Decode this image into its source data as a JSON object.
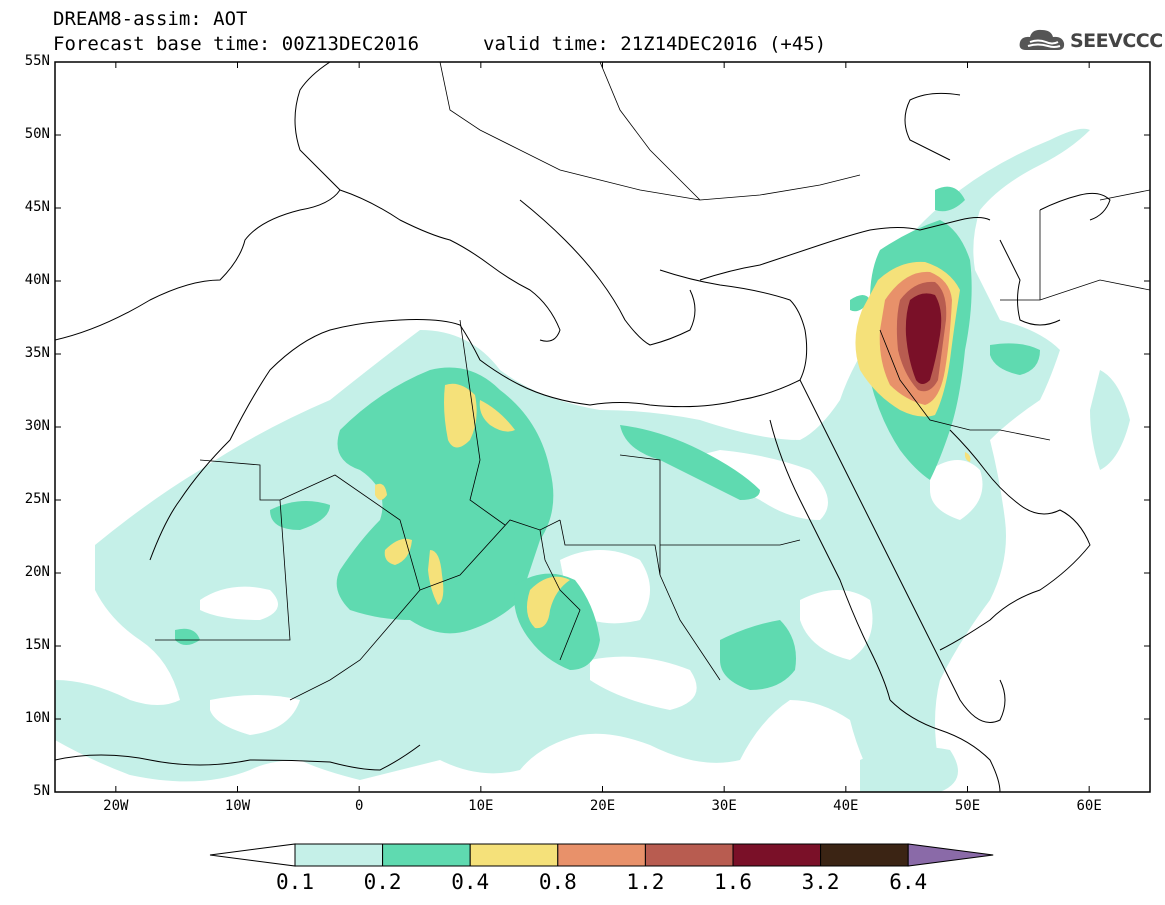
{
  "header": {
    "title": "DREAM8-assim: AOT",
    "base_time": "Forecast base time: 00Z13DEC2016",
    "valid_time": "valid time: 21Z14DEC2016 (+45)",
    "logo": "SEEVCCC"
  },
  "map": {
    "variable": "AOT",
    "lon_range": [
      -25,
      65
    ],
    "lat_range": [
      5,
      55
    ],
    "lat_labels": [
      "55N",
      "50N",
      "45N",
      "40N",
      "35N",
      "30N",
      "25N",
      "20N",
      "15N",
      "10N",
      "5N"
    ],
    "lon_labels": [
      "20W",
      "10W",
      "0",
      "10E",
      "20E",
      "30E",
      "40E",
      "50E",
      "60E"
    ]
  },
  "colorbar": {
    "levels": [
      "0.1",
      "0.2",
      "0.4",
      "0.8",
      "1.2",
      "1.6",
      "3.2",
      "6.4"
    ],
    "colors": [
      "#c5f0e8",
      "#5fdab0",
      "#f5e17a",
      "#e8916a",
      "#b85c50",
      "#7a1028",
      "#3b2414",
      "#8a6aa8"
    ]
  }
}
